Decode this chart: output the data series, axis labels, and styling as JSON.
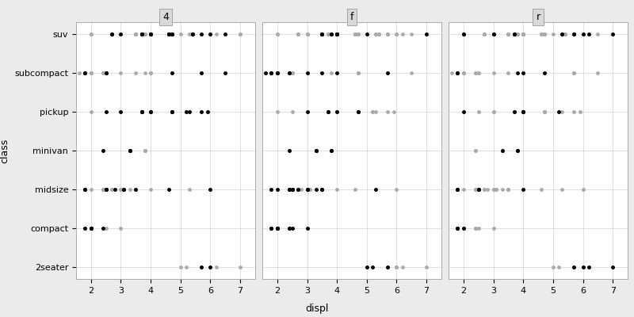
{
  "xlabel": "displ",
  "ylabel": "class",
  "facets": [
    "4",
    "f",
    "r"
  ],
  "classes": [
    "suv",
    "subcompact",
    "pickup",
    "minivan",
    "midsize",
    "compact",
    "2seater"
  ],
  "highlight_color": "#000000",
  "grey_color": "#AAAAAA",
  "panel_bg": "#FFFFFF",
  "strip_bg": "#D9D9D9",
  "outer_bg": "#EBEBEB",
  "point_size": 12,
  "xlim": [
    1.5,
    7.5
  ],
  "xticks": [
    2,
    3,
    4,
    5,
    6,
    7
  ],
  "all_data": [
    {
      "drv": "4",
      "class": "suv",
      "displ": 2.7
    },
    {
      "drv": "4",
      "class": "suv",
      "displ": 2.7
    },
    {
      "drv": "4",
      "class": "suv",
      "displ": 2.7
    },
    {
      "drv": "4",
      "class": "suv",
      "displ": 3.0
    },
    {
      "drv": "4",
      "class": "suv",
      "displ": 3.7
    },
    {
      "drv": "4",
      "class": "suv",
      "displ": 3.7
    },
    {
      "drv": "4",
      "class": "suv",
      "displ": 3.7
    },
    {
      "drv": "4",
      "class": "suv",
      "displ": 3.7
    },
    {
      "drv": "4",
      "class": "suv",
      "displ": 3.7
    },
    {
      "drv": "4",
      "class": "suv",
      "displ": 4.0
    },
    {
      "drv": "4",
      "class": "suv",
      "displ": 4.0
    },
    {
      "drv": "4",
      "class": "suv",
      "displ": 4.0
    },
    {
      "drv": "4",
      "class": "suv",
      "displ": 4.0
    },
    {
      "drv": "4",
      "class": "suv",
      "displ": 4.6
    },
    {
      "drv": "4",
      "class": "suv",
      "displ": 4.6
    },
    {
      "drv": "4",
      "class": "suv",
      "displ": 4.6
    },
    {
      "drv": "4",
      "class": "suv",
      "displ": 4.6
    },
    {
      "drv": "4",
      "class": "suv",
      "displ": 4.6
    },
    {
      "drv": "4",
      "class": "suv",
      "displ": 4.6
    },
    {
      "drv": "4",
      "class": "suv",
      "displ": 4.7
    },
    {
      "drv": "4",
      "class": "suv",
      "displ": 4.7
    },
    {
      "drv": "4",
      "class": "suv",
      "displ": 4.7
    },
    {
      "drv": "4",
      "class": "suv",
      "displ": 5.4
    },
    {
      "drv": "4",
      "class": "suv",
      "displ": 5.4
    },
    {
      "drv": "4",
      "class": "suv",
      "displ": 5.4
    },
    {
      "drv": "4",
      "class": "suv",
      "displ": 5.7
    },
    {
      "drv": "4",
      "class": "suv",
      "displ": 6.0
    },
    {
      "drv": "4",
      "class": "suv",
      "displ": 6.5
    },
    {
      "drv": "f",
      "class": "suv",
      "displ": 3.5
    },
    {
      "drv": "f",
      "class": "suv",
      "displ": 3.5
    },
    {
      "drv": "f",
      "class": "suv",
      "displ": 3.5
    },
    {
      "drv": "f",
      "class": "suv",
      "displ": 3.5
    },
    {
      "drv": "f",
      "class": "suv",
      "displ": 3.5
    },
    {
      "drv": "f",
      "class": "suv",
      "displ": 3.8
    },
    {
      "drv": "f",
      "class": "suv",
      "displ": 3.8
    },
    {
      "drv": "f",
      "class": "suv",
      "displ": 3.8
    },
    {
      "drv": "f",
      "class": "suv",
      "displ": 4.0
    },
    {
      "drv": "f",
      "class": "suv",
      "displ": 4.0
    },
    {
      "drv": "f",
      "class": "suv",
      "displ": 4.0
    },
    {
      "drv": "f",
      "class": "suv",
      "displ": 4.0
    },
    {
      "drv": "f",
      "class": "suv",
      "displ": 4.0
    },
    {
      "drv": "f",
      "class": "suv",
      "displ": 4.0
    },
    {
      "drv": "f",
      "class": "suv",
      "displ": 4.0
    },
    {
      "drv": "f",
      "class": "suv",
      "displ": 5.0
    },
    {
      "drv": "f",
      "class": "suv",
      "displ": 7.0
    },
    {
      "drv": "r",
      "class": "suv",
      "displ": 2.0
    },
    {
      "drv": "r",
      "class": "suv",
      "displ": 2.0
    },
    {
      "drv": "r",
      "class": "suv",
      "displ": 3.0
    },
    {
      "drv": "r",
      "class": "suv",
      "displ": 3.0
    },
    {
      "drv": "r",
      "class": "suv",
      "displ": 3.7
    },
    {
      "drv": "r",
      "class": "suv",
      "displ": 3.7
    },
    {
      "drv": "r",
      "class": "suv",
      "displ": 5.3
    },
    {
      "drv": "r",
      "class": "suv",
      "displ": 5.3
    },
    {
      "drv": "r",
      "class": "suv",
      "displ": 5.7
    },
    {
      "drv": "r",
      "class": "suv",
      "displ": 5.7
    },
    {
      "drv": "r",
      "class": "suv",
      "displ": 6.0
    },
    {
      "drv": "r",
      "class": "suv",
      "displ": 6.2
    },
    {
      "drv": "r",
      "class": "suv",
      "displ": 7.0
    },
    {
      "drv": "4",
      "class": "subcompact",
      "displ": 1.8
    },
    {
      "drv": "4",
      "class": "subcompact",
      "displ": 1.8
    },
    {
      "drv": "4",
      "class": "subcompact",
      "displ": 2.5
    },
    {
      "drv": "4",
      "class": "subcompact",
      "displ": 2.5
    },
    {
      "drv": "4",
      "class": "subcompact",
      "displ": 4.7
    },
    {
      "drv": "4",
      "class": "subcompact",
      "displ": 5.7
    },
    {
      "drv": "4",
      "class": "subcompact",
      "displ": 6.5
    },
    {
      "drv": "f",
      "class": "subcompact",
      "displ": 1.6
    },
    {
      "drv": "f",
      "class": "subcompact",
      "displ": 1.8
    },
    {
      "drv": "f",
      "class": "subcompact",
      "displ": 1.8
    },
    {
      "drv": "f",
      "class": "subcompact",
      "displ": 2.0
    },
    {
      "drv": "f",
      "class": "subcompact",
      "displ": 2.0
    },
    {
      "drv": "f",
      "class": "subcompact",
      "displ": 2.0
    },
    {
      "drv": "f",
      "class": "subcompact",
      "displ": 2.4
    },
    {
      "drv": "f",
      "class": "subcompact",
      "displ": 2.4
    },
    {
      "drv": "f",
      "class": "subcompact",
      "displ": 3.0
    },
    {
      "drv": "f",
      "class": "subcompact",
      "displ": 3.5
    },
    {
      "drv": "f",
      "class": "subcompact",
      "displ": 4.0
    },
    {
      "drv": "f",
      "class": "subcompact",
      "displ": 5.7
    },
    {
      "drv": "r",
      "class": "subcompact",
      "displ": 1.8
    },
    {
      "drv": "r",
      "class": "subcompact",
      "displ": 1.8
    },
    {
      "drv": "r",
      "class": "subcompact",
      "displ": 3.8
    },
    {
      "drv": "r",
      "class": "subcompact",
      "displ": 4.0
    },
    {
      "drv": "r",
      "class": "subcompact",
      "displ": 4.7
    },
    {
      "drv": "4",
      "class": "pickup",
      "displ": 2.5
    },
    {
      "drv": "4",
      "class": "pickup",
      "displ": 3.0
    },
    {
      "drv": "4",
      "class": "pickup",
      "displ": 3.7
    },
    {
      "drv": "4",
      "class": "pickup",
      "displ": 3.7
    },
    {
      "drv": "4",
      "class": "pickup",
      "displ": 3.7
    },
    {
      "drv": "4",
      "class": "pickup",
      "displ": 3.7
    },
    {
      "drv": "4",
      "class": "pickup",
      "displ": 4.0
    },
    {
      "drv": "4",
      "class": "pickup",
      "displ": 4.0
    },
    {
      "drv": "4",
      "class": "pickup",
      "displ": 4.7
    },
    {
      "drv": "4",
      "class": "pickup",
      "displ": 4.7
    },
    {
      "drv": "4",
      "class": "pickup",
      "displ": 4.7
    },
    {
      "drv": "4",
      "class": "pickup",
      "displ": 5.2
    },
    {
      "drv": "4",
      "class": "pickup",
      "displ": 5.3
    },
    {
      "drv": "4",
      "class": "pickup",
      "displ": 5.7
    },
    {
      "drv": "4",
      "class": "pickup",
      "displ": 5.9
    },
    {
      "drv": "f",
      "class": "pickup",
      "displ": 3.0
    },
    {
      "drv": "f",
      "class": "pickup",
      "displ": 3.7
    },
    {
      "drv": "f",
      "class": "pickup",
      "displ": 3.7
    },
    {
      "drv": "f",
      "class": "pickup",
      "displ": 4.0
    },
    {
      "drv": "f",
      "class": "pickup",
      "displ": 4.7
    },
    {
      "drv": "f",
      "class": "pickup",
      "displ": 4.7
    },
    {
      "drv": "r",
      "class": "pickup",
      "displ": 2.0
    },
    {
      "drv": "r",
      "class": "pickup",
      "displ": 3.7
    },
    {
      "drv": "r",
      "class": "pickup",
      "displ": 4.0
    },
    {
      "drv": "r",
      "class": "pickup",
      "displ": 4.0
    },
    {
      "drv": "r",
      "class": "pickup",
      "displ": 4.0
    },
    {
      "drv": "r",
      "class": "pickup",
      "displ": 5.2
    },
    {
      "drv": "4",
      "class": "minivan",
      "displ": 2.4
    },
    {
      "drv": "4",
      "class": "minivan",
      "displ": 3.3
    },
    {
      "drv": "4",
      "class": "minivan",
      "displ": 3.3
    },
    {
      "drv": "4",
      "class": "minivan",
      "displ": 3.3
    },
    {
      "drv": "f",
      "class": "minivan",
      "displ": 2.4
    },
    {
      "drv": "f",
      "class": "minivan",
      "displ": 3.3
    },
    {
      "drv": "f",
      "class": "minivan",
      "displ": 3.3
    },
    {
      "drv": "f",
      "class": "minivan",
      "displ": 3.3
    },
    {
      "drv": "f",
      "class": "minivan",
      "displ": 3.8
    },
    {
      "drv": "f",
      "class": "minivan",
      "displ": 3.8
    },
    {
      "drv": "r",
      "class": "minivan",
      "displ": 3.3
    },
    {
      "drv": "r",
      "class": "minivan",
      "displ": 3.8
    },
    {
      "drv": "r",
      "class": "minivan",
      "displ": 3.8
    },
    {
      "drv": "4",
      "class": "midsize",
      "displ": 1.8
    },
    {
      "drv": "4",
      "class": "midsize",
      "displ": 1.8
    },
    {
      "drv": "4",
      "class": "midsize",
      "displ": 2.5
    },
    {
      "drv": "4",
      "class": "midsize",
      "displ": 2.5
    },
    {
      "drv": "4",
      "class": "midsize",
      "displ": 2.8
    },
    {
      "drv": "4",
      "class": "midsize",
      "displ": 3.1
    },
    {
      "drv": "4",
      "class": "midsize",
      "displ": 3.1
    },
    {
      "drv": "4",
      "class": "midsize",
      "displ": 3.5
    },
    {
      "drv": "4",
      "class": "midsize",
      "displ": 4.6
    },
    {
      "drv": "4",
      "class": "midsize",
      "displ": 6.0
    },
    {
      "drv": "f",
      "class": "midsize",
      "displ": 1.8
    },
    {
      "drv": "f",
      "class": "midsize",
      "displ": 2.0
    },
    {
      "drv": "f",
      "class": "midsize",
      "displ": 2.4
    },
    {
      "drv": "f",
      "class": "midsize",
      "displ": 2.4
    },
    {
      "drv": "f",
      "class": "midsize",
      "displ": 2.4
    },
    {
      "drv": "f",
      "class": "midsize",
      "displ": 2.5
    },
    {
      "drv": "f",
      "class": "midsize",
      "displ": 2.5
    },
    {
      "drv": "f",
      "class": "midsize",
      "displ": 2.5
    },
    {
      "drv": "f",
      "class": "midsize",
      "displ": 2.7
    },
    {
      "drv": "f",
      "class": "midsize",
      "displ": 2.7
    },
    {
      "drv": "f",
      "class": "midsize",
      "displ": 3.0
    },
    {
      "drv": "f",
      "class": "midsize",
      "displ": 3.0
    },
    {
      "drv": "f",
      "class": "midsize",
      "displ": 3.3
    },
    {
      "drv": "f",
      "class": "midsize",
      "displ": 3.5
    },
    {
      "drv": "f",
      "class": "midsize",
      "displ": 3.5
    },
    {
      "drv": "f",
      "class": "midsize",
      "displ": 3.5
    },
    {
      "drv": "f",
      "class": "midsize",
      "displ": 5.3
    },
    {
      "drv": "r",
      "class": "midsize",
      "displ": 1.8
    },
    {
      "drv": "r",
      "class": "midsize",
      "displ": 1.8
    },
    {
      "drv": "r",
      "class": "midsize",
      "displ": 2.5
    },
    {
      "drv": "r",
      "class": "midsize",
      "displ": 2.5
    },
    {
      "drv": "r",
      "class": "midsize",
      "displ": 4.0
    },
    {
      "drv": "4",
      "class": "compact",
      "displ": 1.8
    },
    {
      "drv": "4",
      "class": "compact",
      "displ": 2.0
    },
    {
      "drv": "4",
      "class": "compact",
      "displ": 2.0
    },
    {
      "drv": "4",
      "class": "compact",
      "displ": 2.0
    },
    {
      "drv": "4",
      "class": "compact",
      "displ": 2.4
    },
    {
      "drv": "f",
      "class": "compact",
      "displ": 1.8
    },
    {
      "drv": "f",
      "class": "compact",
      "displ": 1.8
    },
    {
      "drv": "f",
      "class": "compact",
      "displ": 2.0
    },
    {
      "drv": "f",
      "class": "compact",
      "displ": 2.0
    },
    {
      "drv": "f",
      "class": "compact",
      "displ": 2.0
    },
    {
      "drv": "f",
      "class": "compact",
      "displ": 2.0
    },
    {
      "drv": "f",
      "class": "compact",
      "displ": 2.4
    },
    {
      "drv": "f",
      "class": "compact",
      "displ": 2.4
    },
    {
      "drv": "f",
      "class": "compact",
      "displ": 2.5
    },
    {
      "drv": "f",
      "class": "compact",
      "displ": 3.0
    },
    {
      "drv": "r",
      "class": "compact",
      "displ": 1.8
    },
    {
      "drv": "r",
      "class": "compact",
      "displ": 1.8
    },
    {
      "drv": "r",
      "class": "compact",
      "displ": 2.0
    },
    {
      "drv": "4",
      "class": "2seater",
      "displ": 5.7
    },
    {
      "drv": "4",
      "class": "2seater",
      "displ": 6.0
    },
    {
      "drv": "f",
      "class": "2seater",
      "displ": 5.0
    },
    {
      "drv": "f",
      "class": "2seater",
      "displ": 5.2
    },
    {
      "drv": "f",
      "class": "2seater",
      "displ": 5.7
    },
    {
      "drv": "r",
      "class": "2seater",
      "displ": 5.7
    },
    {
      "drv": "r",
      "class": "2seater",
      "displ": 6.0
    },
    {
      "drv": "r",
      "class": "2seater",
      "displ": 6.2
    },
    {
      "drv": "r",
      "class": "2seater",
      "displ": 7.0
    }
  ]
}
